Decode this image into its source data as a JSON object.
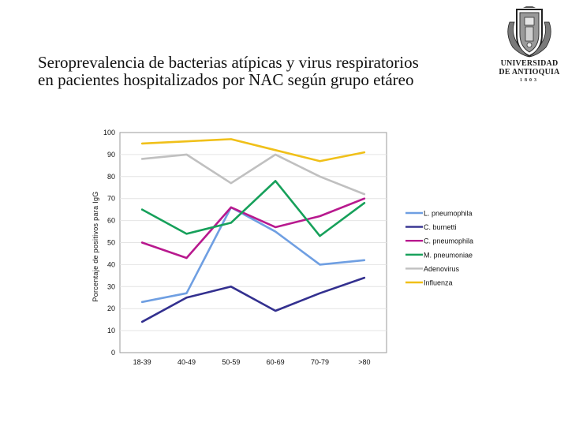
{
  "slide": {
    "title_line1": "Seroprevalencia de bacterias atípicas y virus respiratorios",
    "title_line2": "en pacientes hospitalizados por NAC según grupo etáreo"
  },
  "logo": {
    "line1": "UNIVERSIDAD",
    "line2": "DE ANTIOQUIA",
    "line3": "1803"
  },
  "chart_data": {
    "type": "line",
    "title": "",
    "xlabel": "",
    "ylabel": "Porcentaje de positivos para IgG",
    "ylim": [
      0,
      100
    ],
    "yticks": [
      "0",
      "10",
      "20",
      "30",
      "40",
      "50",
      "60",
      "70",
      "80",
      "90",
      "100"
    ],
    "categories": [
      "18-39",
      "40-49",
      "50-59",
      "60-69",
      "70-79",
      ">80"
    ],
    "legend_position": "right",
    "series": [
      {
        "name": "L. pneumophila",
        "color": "#6f9fe2",
        "values": [
          23,
          27,
          66,
          55,
          40,
          42
        ]
      },
      {
        "name": "C. burnetti",
        "color": "#33308f",
        "values": [
          14,
          25,
          30,
          19,
          27,
          34
        ]
      },
      {
        "name": "C. pneumophila",
        "color": "#b8198e",
        "values": [
          50,
          43,
          66,
          57,
          62,
          70
        ]
      },
      {
        "name": "M. pneumoniae",
        "color": "#16a05a",
        "values": [
          65,
          54,
          59,
          78,
          53,
          68
        ]
      },
      {
        "name": "Adenovirus",
        "color": "#c0c0c0",
        "values": [
          88,
          90,
          77,
          90,
          80,
          72
        ]
      },
      {
        "name": "Influenza",
        "color": "#f0c019",
        "values": [
          95,
          96,
          97,
          92,
          87,
          91
        ]
      }
    ]
  }
}
